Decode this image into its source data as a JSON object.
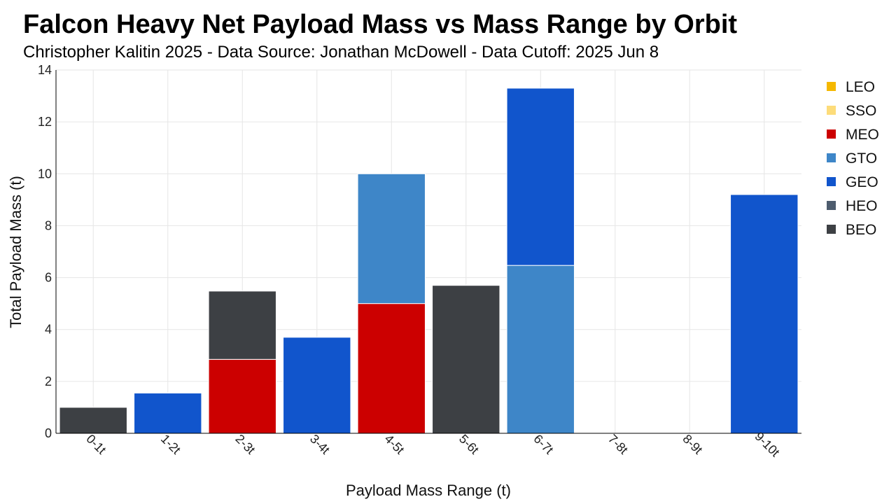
{
  "chart_data": {
    "type": "bar",
    "stacked": true,
    "title": "Falcon Heavy Net Payload Mass vs Mass Range by Orbit",
    "subtitle": "Christopher Kalitin 2025 - Data Source: Jonathan McDowell - Data Cutoff: 2025 Jun 8",
    "xlabel": "Payload Mass Range (t)",
    "ylabel": "Total Payload Mass (t)",
    "ylim": [
      0,
      14
    ],
    "yticks": [
      0,
      2,
      4,
      6,
      8,
      10,
      12,
      14
    ],
    "grid": true,
    "legend_position": "right",
    "categories": [
      "0-1t",
      "1-2t",
      "2-3t",
      "3-4t",
      "4-5t",
      "5-6t",
      "6-7t",
      "7-8t",
      "8-9t",
      "9-10t"
    ],
    "series": [
      {
        "name": "LEO",
        "color": "#f5b800",
        "values": [
          0,
          0,
          0,
          0,
          0,
          0,
          0,
          0,
          0,
          0
        ]
      },
      {
        "name": "SSO",
        "color": "#fddc7a",
        "values": [
          0,
          0,
          0,
          0,
          0,
          0,
          0,
          0,
          0,
          0
        ]
      },
      {
        "name": "MEO",
        "color": "#cc0000",
        "values": [
          0,
          0,
          2.85,
          0,
          5.0,
          0,
          0,
          0,
          0,
          0
        ]
      },
      {
        "name": "GTO",
        "color": "#3e86c8",
        "values": [
          0,
          0,
          0,
          0,
          5.0,
          0,
          6.47,
          0,
          0,
          0
        ]
      },
      {
        "name": "GEO",
        "color": "#1155cc",
        "values": [
          0,
          1.55,
          0,
          3.7,
          0,
          0,
          6.83,
          0,
          0,
          9.2
        ]
      },
      {
        "name": "HEO",
        "color": "#4d5c6e",
        "values": [
          0,
          0,
          0,
          0,
          0,
          0,
          0,
          0,
          0,
          0
        ]
      },
      {
        "name": "BEO",
        "color": "#3d4044",
        "values": [
          1.0,
          0,
          2.63,
          0,
          0,
          5.7,
          0,
          0,
          0,
          0
        ]
      }
    ]
  }
}
